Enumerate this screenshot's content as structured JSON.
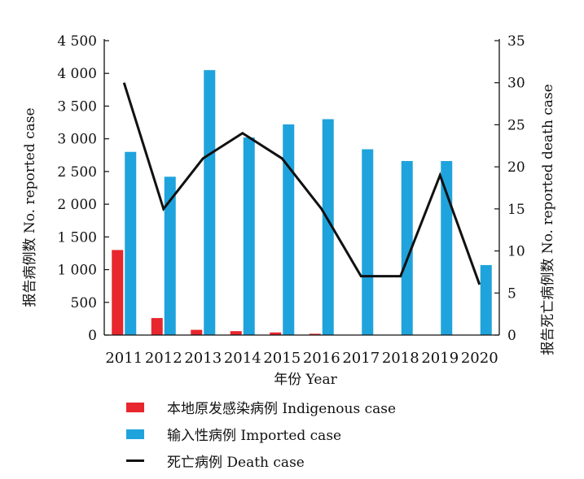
{
  "chart_data": {
    "type": "bar",
    "categories": [
      "2011",
      "2012",
      "2013",
      "2014",
      "2015",
      "2016",
      "2017",
      "2018",
      "2019",
      "2020"
    ],
    "series": [
      {
        "name": "本地原发感染病例  Indigenous  case",
        "kind": "bar",
        "axis": "left",
        "color": "#e8262d",
        "values": [
          1300,
          260,
          80,
          60,
          40,
          20,
          0,
          0,
          0,
          0
        ]
      },
      {
        "name": "输入性病例  Imported  case",
        "kind": "bar",
        "axis": "left",
        "color": "#1fa3dc",
        "values": [
          2800,
          2420,
          4050,
          3020,
          3220,
          3300,
          2840,
          2660,
          2660,
          1070
        ]
      },
      {
        "name": "死亡病例  Death  case",
        "kind": "line",
        "axis": "right",
        "color": "#111111",
        "values": [
          30,
          15,
          21,
          24,
          21,
          15,
          7,
          7,
          19,
          6
        ]
      }
    ],
    "ylim": [
      0,
      4500
    ],
    "yticks": [
      "0",
      "500",
      "1 000",
      "1 500",
      "2 000",
      "2 500",
      "3 000",
      "3 500",
      "4 000",
      "4 500"
    ],
    "y2lim": [
      0,
      35
    ],
    "y2ticks": [
      "0",
      "5",
      "10",
      "15",
      "20",
      "25",
      "30",
      "35"
    ],
    "xlabel": "年份  Year",
    "ylabel": "报告病例数  No.  reported  case",
    "y2label": "报告死亡病例数  No.  reported  death  case",
    "legend_position": "bottom",
    "grid": false
  }
}
